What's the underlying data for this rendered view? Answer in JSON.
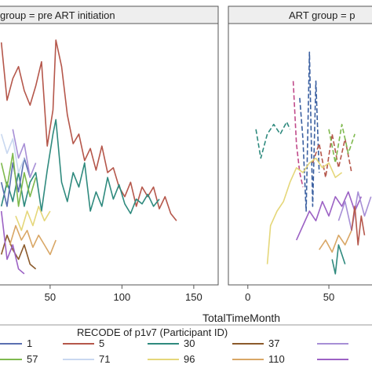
{
  "chart_data": [
    {
      "type": "line",
      "title": "group = pre ART initiation",
      "xlabel": "",
      "x_ticks": [
        50,
        100,
        150
      ],
      "xlim": [
        14,
        167
      ],
      "ylim": [
        0,
        100
      ],
      "series": [
        {
          "name": "5",
          "color": "#b5574b",
          "dash": "",
          "points": [
            [
              16,
              98
            ],
            [
              20,
              74
            ],
            [
              24,
              83
            ],
            [
              28,
              88
            ],
            [
              32,
              78
            ],
            [
              36,
              72
            ],
            [
              40,
              80
            ],
            [
              44,
              90
            ],
            [
              48,
              55
            ],
            [
              52,
              70
            ],
            [
              54,
              99
            ],
            [
              58,
              88
            ],
            [
              62,
              68
            ],
            [
              66,
              56
            ],
            [
              70,
              60
            ],
            [
              74,
              49
            ],
            [
              78,
              54
            ],
            [
              82,
              45
            ],
            [
              86,
              55
            ],
            [
              90,
              44
            ],
            [
              94,
              46
            ],
            [
              98,
              38
            ],
            [
              102,
              34
            ],
            [
              106,
              40
            ],
            [
              110,
              30
            ],
            [
              114,
              38
            ],
            [
              118,
              34
            ],
            [
              122,
              38
            ],
            [
              126,
              29
            ],
            [
              130,
              34
            ],
            [
              134,
              27
            ],
            [
              138,
              24
            ]
          ]
        },
        {
          "name": "30",
          "color": "#2f8a7e",
          "dash": "",
          "points": [
            [
              16,
              30
            ],
            [
              20,
              40
            ],
            [
              24,
              32
            ],
            [
              28,
              44
            ],
            [
              32,
              30
            ],
            [
              36,
              40
            ],
            [
              40,
              44
            ],
            [
              44,
              28
            ],
            [
              48,
              45
            ],
            [
              52,
              60
            ],
            [
              54,
              66
            ],
            [
              58,
              40
            ],
            [
              62,
              32
            ],
            [
              66,
              44
            ],
            [
              70,
              38
            ],
            [
              74,
              48
            ],
            [
              78,
              28
            ],
            [
              82,
              36
            ],
            [
              86,
              30
            ],
            [
              90,
              42
            ],
            [
              94,
              33
            ],
            [
              98,
              39
            ],
            [
              102,
              31
            ],
            [
              106,
              27
            ],
            [
              110,
              33
            ],
            [
              114,
              31
            ],
            [
              118,
              35
            ],
            [
              122,
              30
            ],
            [
              126,
              33
            ]
          ]
        },
        {
          "name": "1",
          "color": "#5a6fb0",
          "dash": "",
          "points": [
            [
              16,
              40
            ],
            [
              20,
              30
            ],
            [
              24,
              48
            ],
            [
              28,
              36
            ],
            [
              32,
              50
            ],
            [
              36,
              42
            ]
          ]
        },
        {
          "name": "57",
          "color": "#7fb94e",
          "dash": "",
          "points": [
            [
              16,
              48
            ],
            [
              20,
              38
            ],
            [
              24,
              52
            ],
            [
              28,
              30
            ],
            [
              32,
              44
            ],
            [
              36,
              34
            ],
            [
              40,
              42
            ]
          ]
        },
        {
          "name": "71",
          "color": "#c9d8f0",
          "dash": "",
          "points": [
            [
              16,
              60
            ],
            [
              20,
              52
            ],
            [
              24,
              58
            ],
            [
              28,
              44
            ],
            [
              32,
              50
            ]
          ]
        },
        {
          "name": "37",
          "color": "#8b5a2b",
          "dash": "",
          "points": [
            [
              16,
              10
            ],
            [
              20,
              18
            ],
            [
              24,
              12
            ],
            [
              28,
              8
            ],
            [
              32,
              14
            ],
            [
              36,
              6
            ],
            [
              40,
              4
            ]
          ]
        },
        {
          "name": "110",
          "color": "#d9a766",
          "dash": "",
          "points": [
            [
              22,
              14
            ],
            [
              26,
              22
            ],
            [
              30,
              16
            ],
            [
              34,
              20
            ],
            [
              38,
              13
            ],
            [
              42,
              18
            ],
            [
              46,
              14
            ],
            [
              50,
              10
            ],
            [
              54,
              16
            ]
          ]
        },
        {
          "name": "",
          "color": "#a78fd6",
          "dash": "",
          "points": [
            [
              24,
              62
            ],
            [
              28,
              50
            ],
            [
              32,
              56
            ],
            [
              36,
              42
            ],
            [
              40,
              48
            ]
          ]
        },
        {
          "name": "",
          "color": "#9c62c4",
          "dash": "",
          "points": [
            [
              16,
              28
            ],
            [
              20,
              8
            ],
            [
              24,
              14
            ],
            [
              28,
              4
            ],
            [
              32,
              2
            ]
          ]
        },
        {
          "name": "96",
          "color": "#e5d77a",
          "dash": "",
          "points": [
            [
              26,
              26
            ],
            [
              30,
              20
            ],
            [
              34,
              28
            ],
            [
              38,
              22
            ],
            [
              42,
              30
            ],
            [
              46,
              24
            ],
            [
              50,
              28
            ]
          ]
        }
      ]
    },
    {
      "type": "line",
      "title": "ART group = p",
      "xlabel": "",
      "x_ticks": [
        0,
        50
      ],
      "xlim": [
        -12,
        80
      ],
      "ylim": [
        0,
        100
      ],
      "series": [
        {
          "name": "",
          "color": "#2f8a7e",
          "dash": "6,3",
          "points": [
            [
              5,
              62
            ],
            [
              8,
              50
            ],
            [
              12,
              60
            ],
            [
              16,
              64
            ],
            [
              20,
              60
            ],
            [
              24,
              65
            ],
            [
              26,
              62
            ]
          ]
        },
        {
          "name": "",
          "color": "#3a5fa0",
          "dash": "6,3",
          "points": [
            [
              32,
              75
            ],
            [
              34,
              58
            ],
            [
              36,
              28
            ],
            [
              38,
              94
            ],
            [
              40,
              30
            ],
            [
              42,
              82
            ],
            [
              44,
              44
            ]
          ]
        },
        {
          "name": "",
          "color": "#c04a8a",
          "dash": "6,3",
          "points": [
            [
              28,
              82
            ],
            [
              30,
              56
            ],
            [
              32,
              44
            ],
            [
              34,
              38
            ]
          ]
        },
        {
          "name": "",
          "color": "#b5574b",
          "dash": "6,3",
          "points": [
            [
              40,
              48
            ],
            [
              44,
              56
            ],
            [
              48,
              42
            ],
            [
              52,
              60
            ],
            [
              56,
              46
            ],
            [
              60,
              58
            ],
            [
              64,
              44
            ]
          ]
        },
        {
          "name": "",
          "color": "#7fb94e",
          "dash": "6,3",
          "points": [
            [
              50,
              62
            ],
            [
              54,
              48
            ],
            [
              58,
              64
            ],
            [
              62,
              52
            ],
            [
              66,
              60
            ]
          ]
        },
        {
          "name": "",
          "color": "#e5d77a",
          "dash": "",
          "points": [
            [
              12,
              6
            ],
            [
              14,
              22
            ],
            [
              18,
              28
            ],
            [
              22,
              32
            ],
            [
              26,
              40
            ],
            [
              30,
              46
            ],
            [
              34,
              44
            ],
            [
              38,
              48
            ],
            [
              42,
              50
            ],
            [
              46,
              46
            ],
            [
              50,
              48
            ],
            [
              54,
              42
            ],
            [
              58,
              44
            ]
          ]
        },
        {
          "name": "",
          "color": "#9c62c4",
          "dash": "",
          "points": [
            [
              30,
              16
            ],
            [
              34,
              22
            ],
            [
              38,
              28
            ],
            [
              42,
              24
            ],
            [
              46,
              32
            ],
            [
              50,
              26
            ],
            [
              54,
              34
            ],
            [
              58,
              30
            ],
            [
              62,
              36
            ],
            [
              66,
              28
            ],
            [
              70,
              34
            ]
          ]
        },
        {
          "name": "",
          "color": "#d9a766",
          "dash": "",
          "points": [
            [
              44,
              12
            ],
            [
              48,
              16
            ],
            [
              52,
              11
            ],
            [
              56,
              18
            ],
            [
              60,
              14
            ],
            [
              64,
              20
            ]
          ]
        },
        {
          "name": "",
          "color": "#a78fd6",
          "dash": "",
          "points": [
            [
              56,
              24
            ],
            [
              60,
              32
            ],
            [
              64,
              20
            ],
            [
              68,
              36
            ],
            [
              72,
              26
            ],
            [
              76,
              34
            ]
          ]
        },
        {
          "name": "",
          "color": "#2f8a7e",
          "dash": "",
          "points": [
            [
              52,
              8
            ],
            [
              54,
              2
            ],
            [
              56,
              14
            ],
            [
              58,
              10
            ],
            [
              60,
              6
            ]
          ]
        },
        {
          "name": "",
          "color": "#b5574b",
          "dash": "",
          "points": [
            [
              64,
              20
            ],
            [
              66,
              30
            ],
            [
              68,
              14
            ],
            [
              70,
              26
            ],
            [
              72,
              18
            ]
          ]
        }
      ]
    }
  ],
  "shared_xlabel": "TotalTimeMonth",
  "legend": {
    "title": "RECODE of p1v7 (Participant ID)",
    "position": "bottom",
    "rows": [
      [
        {
          "label": "1",
          "color": "#5a6fb0",
          "dash": ""
        },
        {
          "label": "5",
          "color": "#b5574b",
          "dash": ""
        },
        {
          "label": "30",
          "color": "#2f8a7e",
          "dash": ""
        },
        {
          "label": "37",
          "color": "#8b5a2b",
          "dash": ""
        },
        {
          "label": "",
          "color": "#a78fd6",
          "dash": ""
        }
      ],
      [
        {
          "label": "57",
          "color": "#7fb94e",
          "dash": ""
        },
        {
          "label": "71",
          "color": "#c9d8f0",
          "dash": ""
        },
        {
          "label": "96",
          "color": "#e5d77a",
          "dash": ""
        },
        {
          "label": "110",
          "color": "#d9a766",
          "dash": ""
        },
        {
          "label": "",
          "color": "#9c62c4",
          "dash": ""
        }
      ]
    ]
  }
}
